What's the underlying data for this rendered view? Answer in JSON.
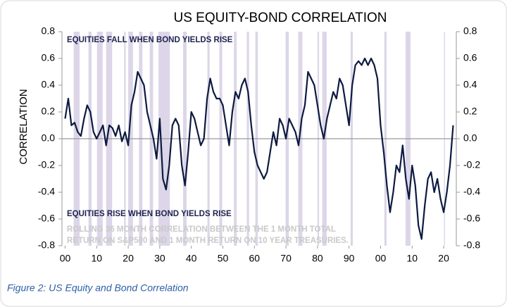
{
  "chart_data": {
    "type": "line",
    "title": "US EQUITY-BOND CORRELATION",
    "ylabel": "CORRELATION",
    "caption": "Figure 2: US Equity and Bond Correlation",
    "annotations": [
      "EQUITIES FALL WHEN BOND YIELDS RISE",
      "EQUITIES RISE WHEN BOND YIELDS RISE",
      "ROLLING 36 MONTH CORRELATION BETWEEN THE 1 MONTH TOTAL",
      "RETURN ON S&P500 AND 1 MONTH RETURN ON 10 YEAR TREASURIES."
    ],
    "x": [
      1900,
      1901,
      1902,
      1903,
      1904,
      1905,
      1906,
      1907,
      1908,
      1909,
      1910,
      1911,
      1912,
      1913,
      1914,
      1915,
      1916,
      1917,
      1918,
      1919,
      1920,
      1921,
      1922,
      1923,
      1924,
      1925,
      1926,
      1927,
      1928,
      1929,
      1930,
      1931,
      1932,
      1933,
      1934,
      1935,
      1936,
      1937,
      1938,
      1939,
      1940,
      1941,
      1942,
      1943,
      1944,
      1945,
      1946,
      1947,
      1948,
      1949,
      1950,
      1951,
      1952,
      1953,
      1954,
      1955,
      1956,
      1957,
      1958,
      1959,
      1960,
      1961,
      1962,
      1963,
      1964,
      1965,
      1966,
      1967,
      1968,
      1969,
      1970,
      1971,
      1972,
      1973,
      1974,
      1975,
      1976,
      1977,
      1978,
      1979,
      1980,
      1981,
      1982,
      1983,
      1984,
      1985,
      1986,
      1987,
      1988,
      1989,
      1990,
      1991,
      1992,
      1993,
      1994,
      1995,
      1996,
      1997,
      1998,
      1999,
      2000,
      2001,
      2002,
      2003,
      2004,
      2005,
      2006,
      2007,
      2008,
      2009,
      2010,
      2011,
      2012,
      2013,
      2014,
      2015,
      2016,
      2017,
      2018,
      2019,
      2020,
      2021,
      2022,
      2023
    ],
    "series": [
      {
        "name": "Correlation",
        "color": "#0d1a40",
        "values": [
          0.15,
          0.3,
          0.1,
          0.12,
          0.05,
          0.02,
          0.15,
          0.25,
          0.2,
          0.05,
          0.0,
          0.05,
          0.1,
          -0.05,
          0.1,
          0.08,
          0.02,
          0.1,
          -0.02,
          0.05,
          -0.05,
          0.25,
          0.35,
          0.5,
          0.45,
          0.4,
          0.2,
          0.1,
          0.0,
          -0.15,
          0.15,
          -0.3,
          -0.38,
          -0.2,
          0.1,
          0.15,
          0.1,
          -0.2,
          -0.35,
          -0.1,
          0.2,
          0.15,
          0.05,
          -0.05,
          0.0,
          0.3,
          0.45,
          0.35,
          0.3,
          0.3,
          0.25,
          0.1,
          -0.05,
          0.2,
          0.35,
          0.3,
          0.4,
          0.45,
          0.35,
          0.1,
          -0.1,
          -0.2,
          -0.25,
          -0.3,
          -0.25,
          -0.1,
          0.05,
          -0.05,
          0.15,
          0.1,
          0.0,
          0.15,
          0.1,
          0.05,
          -0.05,
          0.15,
          0.25,
          0.5,
          0.45,
          0.4,
          0.25,
          0.1,
          0.0,
          0.15,
          0.25,
          0.35,
          0.3,
          0.45,
          0.4,
          0.25,
          0.1,
          0.4,
          0.55,
          0.58,
          0.55,
          0.6,
          0.55,
          0.6,
          0.55,
          0.45,
          0.1,
          -0.1,
          -0.35,
          -0.55,
          -0.4,
          -0.2,
          -0.25,
          -0.05,
          -0.3,
          -0.45,
          -0.2,
          -0.35,
          -0.65,
          -0.75,
          -0.5,
          -0.3,
          -0.25,
          -0.4,
          -0.3,
          -0.45,
          -0.55,
          -0.4,
          -0.2,
          0.1
        ]
      }
    ],
    "shaded_periods": [
      [
        1902.7,
        1904.6
      ],
      [
        1907.4,
        1908.4
      ],
      [
        1910.1,
        1911.9
      ],
      [
        1913.0,
        1914.9
      ],
      [
        1918.7,
        1919.2
      ],
      [
        1920.0,
        1921.5
      ],
      [
        1923.4,
        1924.5
      ],
      [
        1926.8,
        1927.9
      ],
      [
        1929.6,
        1933.2
      ],
      [
        1937.4,
        1938.5
      ],
      [
        1945.1,
        1945.8
      ],
      [
        1948.9,
        1949.8
      ],
      [
        1953.5,
        1954.4
      ],
      [
        1957.6,
        1958.3
      ],
      [
        1960.3,
        1961.1
      ],
      [
        1969.9,
        1970.9
      ],
      [
        1973.9,
        1975.2
      ],
      [
        1980.0,
        1980.5
      ],
      [
        1981.5,
        1982.9
      ],
      [
        1990.5,
        1991.2
      ],
      [
        2001.2,
        2001.9
      ],
      [
        2007.9,
        2009.5
      ],
      [
        2020.1,
        2020.4
      ]
    ],
    "shade_color": "#dcd6e8",
    "xlim": [
      1899,
      2024
    ],
    "xticks": [
      {
        "value": 1900,
        "label": "00"
      },
      {
        "value": 1910,
        "label": "10"
      },
      {
        "value": 1920,
        "label": "20"
      },
      {
        "value": 1930,
        "label": "30"
      },
      {
        "value": 1940,
        "label": "40"
      },
      {
        "value": 1950,
        "label": "50"
      },
      {
        "value": 1960,
        "label": "60"
      },
      {
        "value": 1970,
        "label": "70"
      },
      {
        "value": 1980,
        "label": "80"
      },
      {
        "value": 1990,
        "label": "90"
      },
      {
        "value": 2000,
        "label": "00"
      },
      {
        "value": 2010,
        "label": "10"
      },
      {
        "value": 2020,
        "label": "20"
      }
    ],
    "ylim": [
      -0.8,
      0.8
    ],
    "yticks": [
      0.8,
      0.6,
      0.4,
      0.2,
      {
        "value": 0,
        "label": "0.0"
      },
      -0.2,
      -0.4,
      -0.6,
      -0.8
    ],
    "y2lim": [
      -0.8,
      0.8
    ],
    "y2ticks": [
      0.8,
      0.6,
      0.4,
      0.2,
      {
        "value": 0,
        "label": "0.0"
      },
      -0.2,
      -0.4,
      -0.6,
      -0.8
    ]
  }
}
